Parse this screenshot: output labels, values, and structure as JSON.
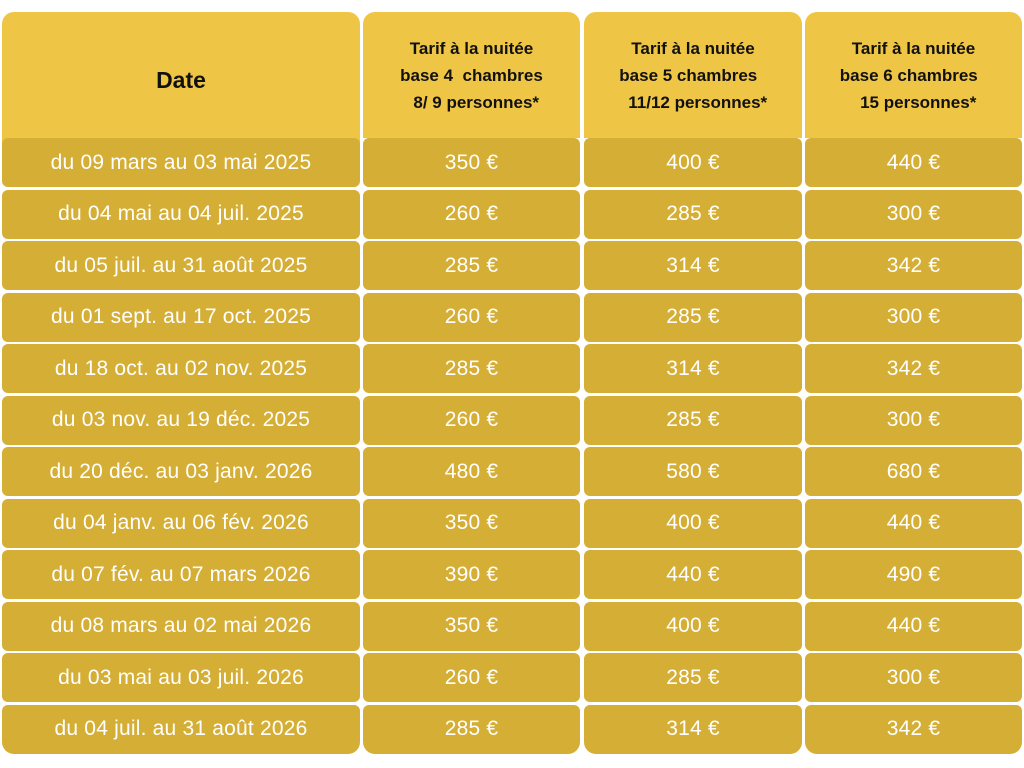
{
  "headers": {
    "date": "Date",
    "base4": "Tarif à la nuitée\nbase 4  chambres\n  8/ 9 personnes*",
    "base5": "Tarif à la nuitée\nbase 5 chambres  \n  11/12 personnes*",
    "base6": "Tarif à la nuitée\nbase 6 chambres  \n  15 personnes*"
  },
  "rows": [
    {
      "date": "du 09 mars au 03 mai 2025",
      "base4": "350 €",
      "base5": "400 €",
      "base6": "440 €"
    },
    {
      "date": "du 04 mai au 04 juil. 2025",
      "base4": "260 €",
      "base5": "285 €",
      "base6": "300 €"
    },
    {
      "date": "du 05 juil. au 31 août 2025",
      "base4": "285 €",
      "base5": "314 €",
      "base6": "342 €"
    },
    {
      "date": "du 01 sept. au 17 oct. 2025",
      "base4": "260 €",
      "base5": "285 €",
      "base6": "300 €"
    },
    {
      "date": "du 18 oct. au 02 nov. 2025",
      "base4": "285 €",
      "base5": "314 €",
      "base6": "342 €"
    },
    {
      "date": "du 03 nov. au 19 déc. 2025",
      "base4": "260 €",
      "base5": "285 €",
      "base6": "300 €"
    },
    {
      "date": "du 20 déc. au 03 janv. 2026",
      "base4": "480 €",
      "base5": "580 €",
      "base6": "680 €"
    },
    {
      "date": "du 04 janv. au 06 fév. 2026",
      "base4": "350 €",
      "base5": "400 €",
      "base6": "440 €"
    },
    {
      "date": "du 07 fév. au 07 mars 2026",
      "base4": "390 €",
      "base5": "440 €",
      "base6": "490 €"
    },
    {
      "date": "du 08 mars au 02 mai 2026",
      "base4": "350 €",
      "base5": "400 €",
      "base6": "440 €"
    },
    {
      "date": "du 03 mai au 03 juil. 2026",
      "base4": "260 €",
      "base5": "285 €",
      "base6": "300 €"
    },
    {
      "date": "du 04 juil. au 31 août 2026",
      "base4": "285 €",
      "base5": "314 €",
      "base6": "342 €"
    }
  ],
  "colors": {
    "header_bg": "#efc545",
    "cell_bg": "#d5ae36",
    "cell_text": "#ffffff",
    "header_text": "#111111"
  }
}
